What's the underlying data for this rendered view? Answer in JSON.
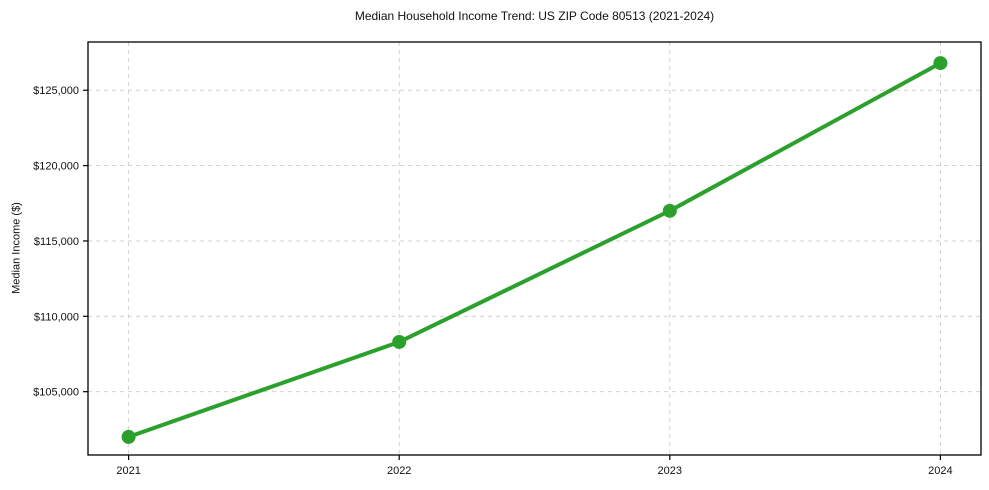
{
  "chart_data": {
    "type": "line",
    "title": "Median Household Income Trend: US ZIP Code 80513 (2021-2024)",
    "xlabel": "",
    "ylabel": "Median Income ($)",
    "categories": [
      2021,
      2022,
      2023,
      2024
    ],
    "xtick_labels": [
      "2021",
      "2022",
      "2023",
      "2024"
    ],
    "series": [
      {
        "name": "Median Household Income",
        "values": [
          102000,
          108300,
          117000,
          126800
        ]
      }
    ],
    "yticks": [
      105000,
      110000,
      115000,
      120000,
      125000
    ],
    "ytick_labels": [
      "$105,000",
      "$110,000",
      "$115,000",
      "$120,000",
      "$125,000"
    ],
    "xlim": [
      2020.85,
      2024.15
    ],
    "ylim": [
      100800,
      128200
    ],
    "grid": true,
    "grid_style": "dashed",
    "legend": "none",
    "colors": {
      "line": "#2ca02c",
      "marker": "#2ca02c",
      "grid": "#cccccc",
      "spine": "#000000",
      "background": "#ffffff"
    }
  }
}
